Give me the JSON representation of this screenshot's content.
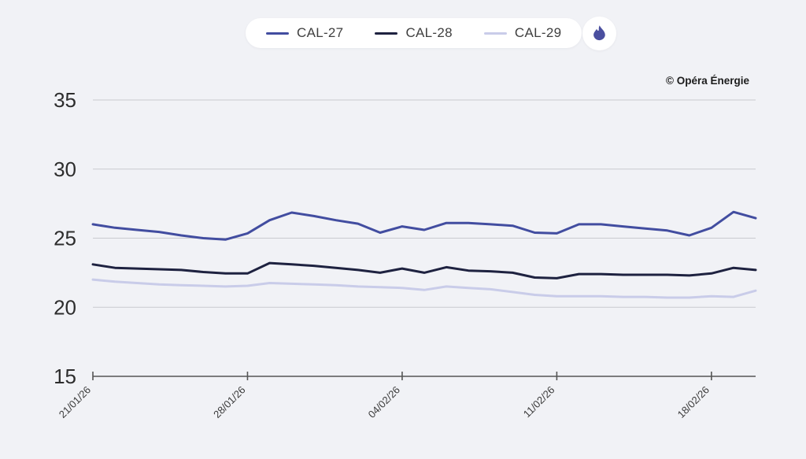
{
  "legend": {
    "items": [
      {
        "label": "CAL-27",
        "color": "#424da0"
      },
      {
        "label": "CAL-28",
        "color": "#1e2240"
      },
      {
        "label": "CAL-29",
        "color": "#c9cce9"
      }
    ],
    "badge_icon": "flame-icon",
    "badge_color": "#4a4f9f"
  },
  "watermark": "© Opéra Énergie",
  "colors": {
    "background": "#f1f2f6",
    "gridline": "#c9cacf",
    "axis": "#555555",
    "y_label": "#2d2d2d",
    "x_label": "#3a3a3a"
  },
  "chart_data": {
    "type": "line",
    "title": "",
    "xlabel": "",
    "ylabel": "",
    "ylim": [
      15,
      35
    ],
    "y_ticks": [
      15,
      20,
      25,
      30,
      35
    ],
    "grid": "horizontal",
    "legend_position": "top-center",
    "x": [
      "21/01/26",
      "22/01/26",
      "23/01/26",
      "24/01/26",
      "25/01/26",
      "26/01/26",
      "27/01/26",
      "28/01/26",
      "29/01/26",
      "30/01/26",
      "31/01/26",
      "01/02/26",
      "02/02/26",
      "03/02/26",
      "04/02/26",
      "05/02/26",
      "06/02/26",
      "07/02/26",
      "08/02/26",
      "09/02/26",
      "10/02/26",
      "11/02/26",
      "12/02/26",
      "13/02/26",
      "14/02/26",
      "15/02/26",
      "16/02/26",
      "17/02/26",
      "18/02/26",
      "19/02/26",
      "20/02/26"
    ],
    "x_tick_indices": [
      0,
      7,
      14,
      21,
      28
    ],
    "x_tick_labels": [
      "21/01/26",
      "28/01/26",
      "04/02/26",
      "11/02/26",
      "18/02/26"
    ],
    "series": [
      {
        "name": "CAL-27",
        "color": "#424da0",
        "values": [
          26.0,
          25.75,
          25.6,
          25.45,
          25.2,
          25.0,
          24.9,
          25.35,
          26.3,
          26.85,
          26.6,
          26.3,
          26.05,
          25.4,
          25.85,
          25.6,
          26.1,
          26.1,
          26.0,
          25.9,
          25.4,
          25.35,
          26.0,
          26.0,
          25.85,
          25.7,
          25.55,
          25.2,
          25.75,
          26.9,
          26.45
        ]
      },
      {
        "name": "CAL-28",
        "color": "#1e2240",
        "values": [
          23.1,
          22.85,
          22.8,
          22.75,
          22.7,
          22.55,
          22.45,
          22.45,
          23.2,
          23.1,
          23.0,
          22.85,
          22.7,
          22.5,
          22.8,
          22.5,
          22.9,
          22.65,
          22.6,
          22.5,
          22.15,
          22.1,
          22.4,
          22.4,
          22.35,
          22.35,
          22.35,
          22.3,
          22.45,
          22.85,
          22.7
        ]
      },
      {
        "name": "CAL-29",
        "color": "#c9cce9",
        "values": [
          22.0,
          21.85,
          21.75,
          21.65,
          21.6,
          21.55,
          21.5,
          21.55,
          21.75,
          21.7,
          21.65,
          21.6,
          21.5,
          21.45,
          21.4,
          21.25,
          21.5,
          21.4,
          21.3,
          21.1,
          20.9,
          20.8,
          20.8,
          20.8,
          20.75,
          20.75,
          20.7,
          20.7,
          20.8,
          20.75,
          21.2
        ]
      }
    ]
  }
}
